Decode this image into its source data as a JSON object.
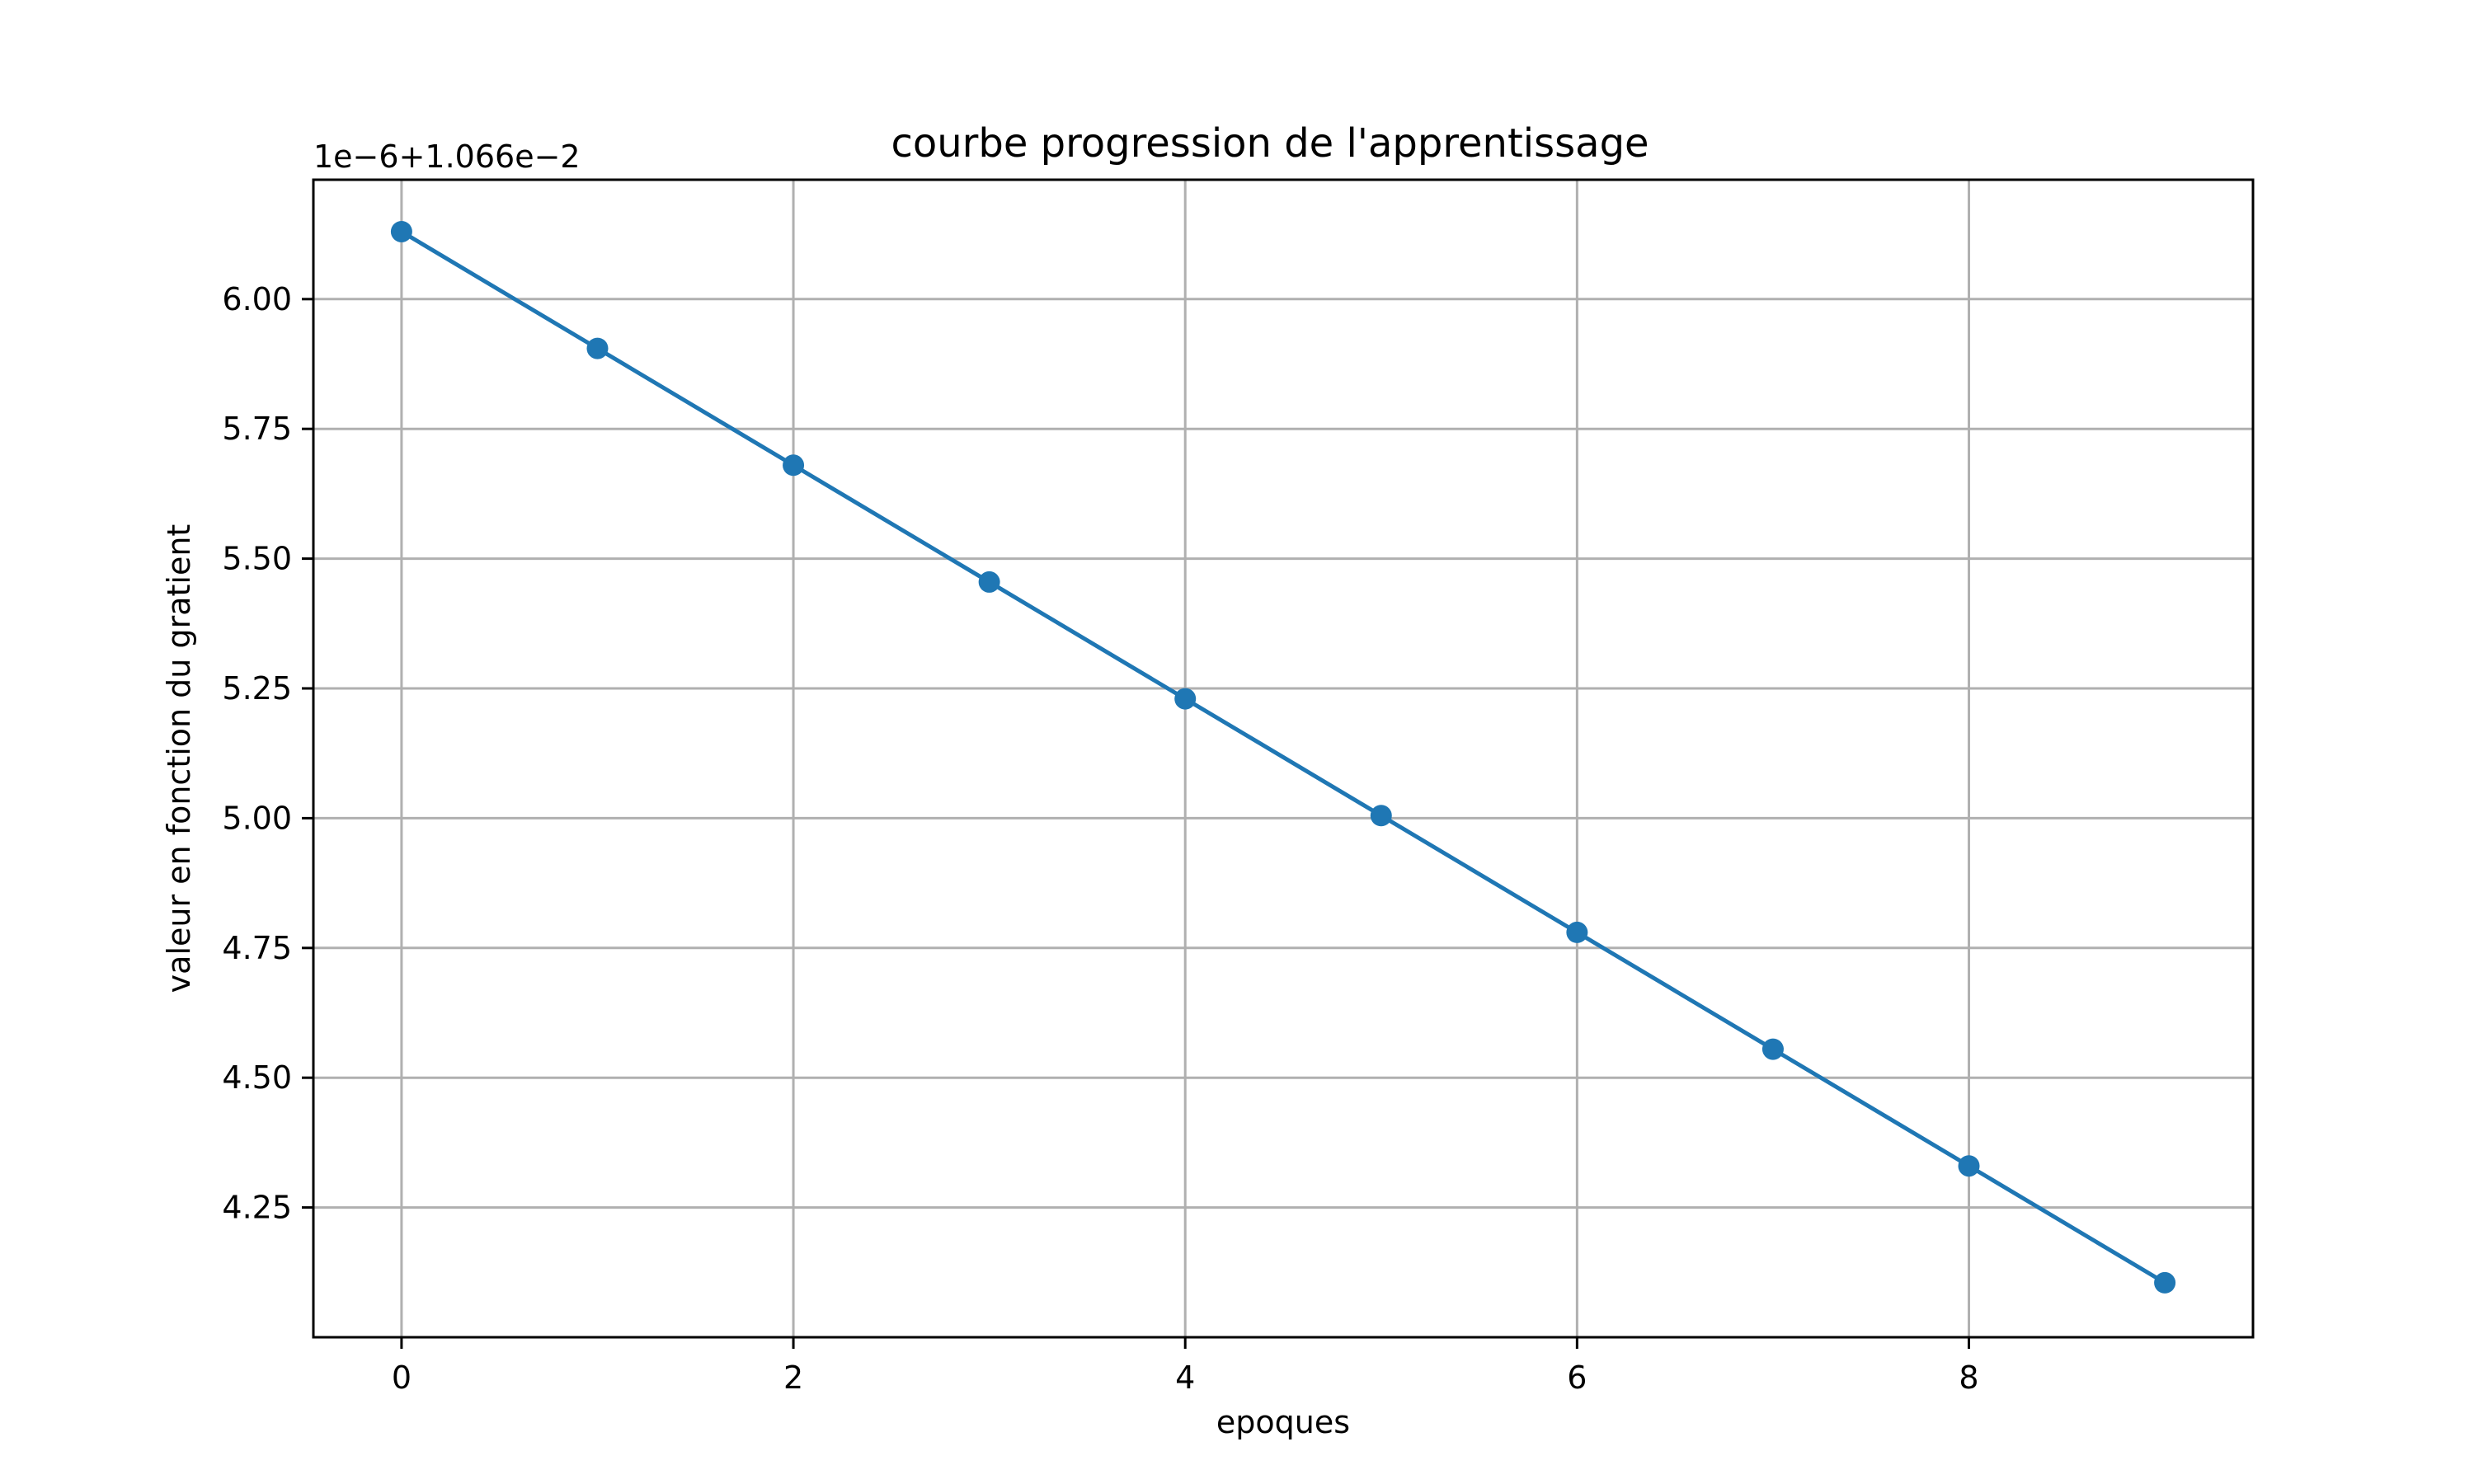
{
  "chart_data": {
    "type": "line",
    "title": "courbe progression de l'apprentissage",
    "xlabel": "epoques",
    "ylabel": "valeur en fonction du gratient",
    "offset_text": "1e−6+1.066e−2",
    "x": [
      0,
      1,
      2,
      3,
      4,
      5,
      6,
      7,
      8,
      9
    ],
    "series": [
      {
        "values": [
          6.13,
          5.905,
          5.68,
          5.455,
          5.23,
          5.005,
          4.78,
          4.555,
          4.33,
          4.105
        ],
        "color": "#1f77b4",
        "marker": "circle"
      }
    ],
    "xlim": [
      -0.45,
      9.45
    ],
    "ylim": [
      4.0,
      6.23
    ],
    "xticks": [
      0,
      2,
      4,
      6,
      8
    ],
    "xtick_labels": [
      "0",
      "2",
      "4",
      "6",
      "8"
    ],
    "yticks": [
      4.25,
      4.5,
      4.75,
      5.0,
      5.25,
      5.5,
      5.75,
      6.0
    ],
    "ytick_labels": [
      "4.25",
      "4.50",
      "4.75",
      "5.00",
      "5.25",
      "5.50",
      "5.75",
      "6.00"
    ],
    "grid": true,
    "legend": "none"
  }
}
